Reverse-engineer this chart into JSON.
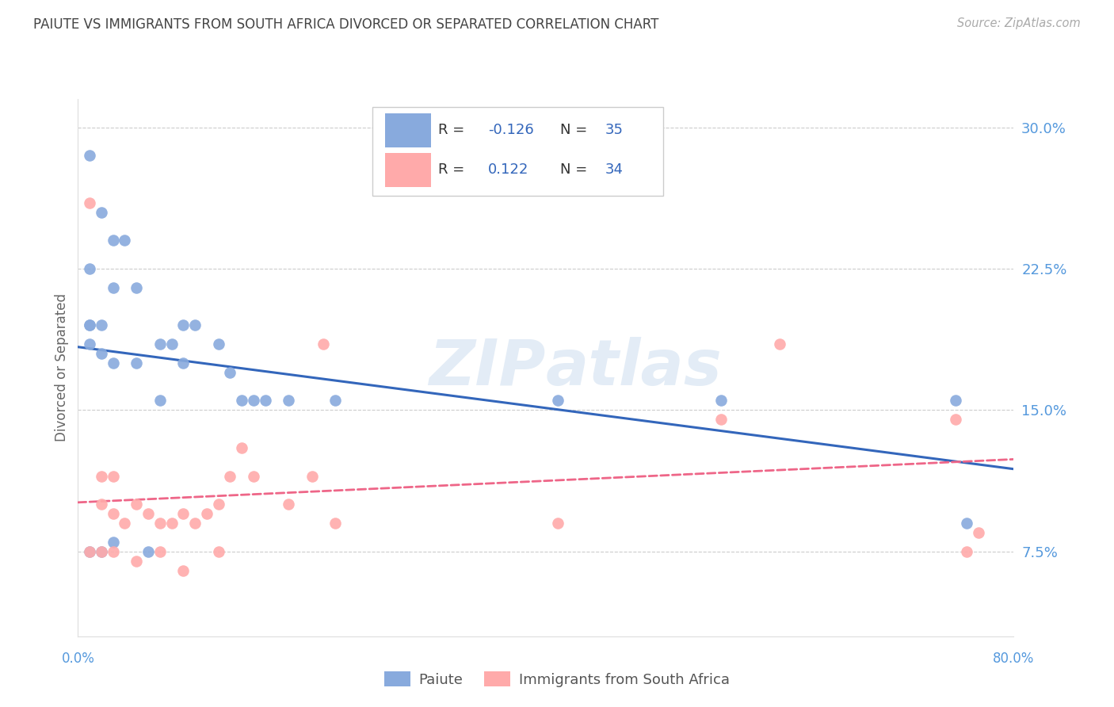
{
  "title": "PAIUTE VS IMMIGRANTS FROM SOUTH AFRICA DIVORCED OR SEPARATED CORRELATION CHART",
  "source_text": "Source: ZipAtlas.com",
  "ylabel": "Divorced or Separated",
  "xlim": [
    0.0,
    0.8
  ],
  "ylim": [
    0.03,
    0.315
  ],
  "yticks": [
    0.075,
    0.15,
    0.225,
    0.3
  ],
  "ytick_labels": [
    "7.5%",
    "15.0%",
    "22.5%",
    "30.0%"
  ],
  "xtick_positions": [
    0.0,
    0.2,
    0.4,
    0.6,
    0.8
  ],
  "xtick_labels": [
    "0.0%",
    "",
    "",
    "",
    "80.0%"
  ],
  "grid_color": "#cccccc",
  "watermark": "ZIPAtlas",
  "blue_color": "#88AADD",
  "pink_color": "#FFAAAA",
  "blue_line_color": "#3366BB",
  "pink_line_color": "#EE6688",
  "title_color": "#444444",
  "axis_label_color": "#5599DD",
  "legend_value_color": "#3366BB",
  "paiute_x": [
    0.01,
    0.02,
    0.03,
    0.04,
    0.05,
    0.01,
    0.01,
    0.02,
    0.03,
    0.01,
    0.01,
    0.02,
    0.03,
    0.05,
    0.07,
    0.08,
    0.09,
    0.09,
    0.1,
    0.12,
    0.13,
    0.14,
    0.15,
    0.16,
    0.18,
    0.22,
    0.41,
    0.55,
    0.75,
    0.76,
    0.01,
    0.02,
    0.03,
    0.06,
    0.07
  ],
  "paiute_y": [
    0.285,
    0.255,
    0.24,
    0.24,
    0.215,
    0.225,
    0.195,
    0.195,
    0.215,
    0.195,
    0.185,
    0.18,
    0.175,
    0.175,
    0.185,
    0.185,
    0.195,
    0.175,
    0.195,
    0.185,
    0.17,
    0.155,
    0.155,
    0.155,
    0.155,
    0.155,
    0.155,
    0.155,
    0.155,
    0.09,
    0.075,
    0.075,
    0.08,
    0.075,
    0.155
  ],
  "imm_x": [
    0.01,
    0.02,
    0.02,
    0.03,
    0.03,
    0.04,
    0.05,
    0.06,
    0.07,
    0.08,
    0.09,
    0.1,
    0.11,
    0.12,
    0.13,
    0.14,
    0.15,
    0.18,
    0.2,
    0.21,
    0.22,
    0.41,
    0.55,
    0.6,
    0.75,
    0.76,
    0.77,
    0.01,
    0.02,
    0.03,
    0.05,
    0.07,
    0.09,
    0.12
  ],
  "imm_y": [
    0.26,
    0.115,
    0.1,
    0.115,
    0.095,
    0.09,
    0.1,
    0.095,
    0.09,
    0.09,
    0.095,
    0.09,
    0.095,
    0.1,
    0.115,
    0.13,
    0.115,
    0.1,
    0.115,
    0.185,
    0.09,
    0.09,
    0.145,
    0.185,
    0.145,
    0.075,
    0.085,
    0.075,
    0.075,
    0.075,
    0.07,
    0.075,
    0.065,
    0.075
  ]
}
